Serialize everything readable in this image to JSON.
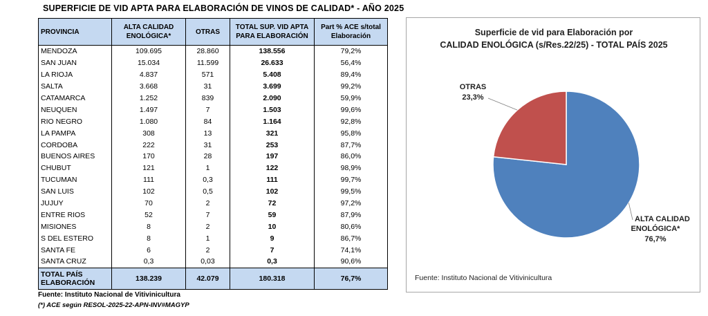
{
  "page_title": "SUPERFICIE DE VID APTA PARA ELABORACIÓN DE VINOS DE CALIDAD* - AÑO 2025",
  "table": {
    "headers": {
      "provincia": "PROVINCIA",
      "alta_1": "ALTA CALIDAD",
      "alta_2": "ENOLÓGICA*",
      "otras": "OTRAS",
      "total_1": "TOTAL SUP. VID APTA",
      "total_2": "PARA ELABORACIÓN",
      "part_1": "Part % ACE s/total",
      "part_2": "Elaboración"
    },
    "rows": [
      {
        "provincia": "MENDOZA",
        "alta": "109.695",
        "otras": "28.860",
        "total": "138.556",
        "part": "79,2%"
      },
      {
        "provincia": "SAN JUAN",
        "alta": "15.034",
        "otras": "11.599",
        "total": "26.633",
        "part": "56,4%"
      },
      {
        "provincia": "LA RIOJA",
        "alta": "4.837",
        "otras": "571",
        "total": "5.408",
        "part": "89,4%"
      },
      {
        "provincia": "SALTA",
        "alta": "3.668",
        "otras": "31",
        "total": "3.699",
        "part": "99,2%"
      },
      {
        "provincia": "CATAMARCA",
        "alta": "1.252",
        "otras": "839",
        "total": "2.090",
        "part": "59,9%"
      },
      {
        "provincia": "NEUQUEN",
        "alta": "1.497",
        "otras": "7",
        "total": "1.503",
        "part": "99,6%"
      },
      {
        "provincia": "RIO NEGRO",
        "alta": "1.080",
        "otras": "84",
        "total": "1.164",
        "part": "92,8%"
      },
      {
        "provincia": "LA PAMPA",
        "alta": "308",
        "otras": "13",
        "total": "321",
        "part": "95,8%"
      },
      {
        "provincia": "CORDOBA",
        "alta": "222",
        "otras": "31",
        "total": "253",
        "part": "87,7%"
      },
      {
        "provincia": "BUENOS AIRES",
        "alta": "170",
        "otras": "28",
        "total": "197",
        "part": "86,0%"
      },
      {
        "provincia": "CHUBUT",
        "alta": "121",
        "otras": "1",
        "total": "122",
        "part": "98,9%"
      },
      {
        "provincia": "TUCUMAN",
        "alta": "111",
        "otras": "0,3",
        "total": "111",
        "part": "99,7%"
      },
      {
        "provincia": "SAN LUIS",
        "alta": "102",
        "otras": "0,5",
        "total": "102",
        "part": "99,5%"
      },
      {
        "provincia": "JUJUY",
        "alta": "70",
        "otras": "2",
        "total": "72",
        "part": "97,2%"
      },
      {
        "provincia": "ENTRE RIOS",
        "alta": "52",
        "otras": "7",
        "total": "59",
        "part": "87,9%"
      },
      {
        "provincia": "MISIONES",
        "alta": "8",
        "otras": "2",
        "total": "10",
        "part": "80,6%"
      },
      {
        "provincia": "S DEL ESTERO",
        "alta": "8",
        "otras": "1",
        "total": "9",
        "part": "86,7%"
      },
      {
        "provincia": "SANTA FE",
        "alta": "6",
        "otras": "2",
        "total": "7",
        "part": "74,1%"
      },
      {
        "provincia": "SANTA CRUZ",
        "alta": "0,3",
        "otras": "0,03",
        "total": "0,3",
        "part": "90,6%"
      }
    ],
    "total_row": {
      "label_1": "TOTAL PAÍS",
      "label_2": "ELABORACIÓN",
      "alta": "138.239",
      "otras": "42.079",
      "total": "180.318",
      "part": "76,7%"
    },
    "header_bg": "#c5d9f1"
  },
  "source_left": "Fuente: Instituto Nacional de Vitivinicultura",
  "footnote": "(*) ACE según RESOL-2025-22-APN-INV#MAGYP",
  "chart_data": {
    "type": "pie",
    "title_line1": "Superficie de vid para Elaboración por",
    "title_line2": "CALIDAD ENOLÓGICA (s/Res.22/25) - TOTAL PAÍS 2025",
    "slices": [
      {
        "label_1": "ALTA CALIDAD",
        "label_2": "ENOLÓGICA*",
        "value": 76.7,
        "value_label": "76,7%",
        "color": "#4f81bd"
      },
      {
        "label_1": "OTRAS",
        "label_2": "",
        "value": 23.3,
        "value_label": "23,3%",
        "color": "#c0504d"
      }
    ],
    "source": "Fuente: Instituto Nacional de Vitivinicultura"
  }
}
